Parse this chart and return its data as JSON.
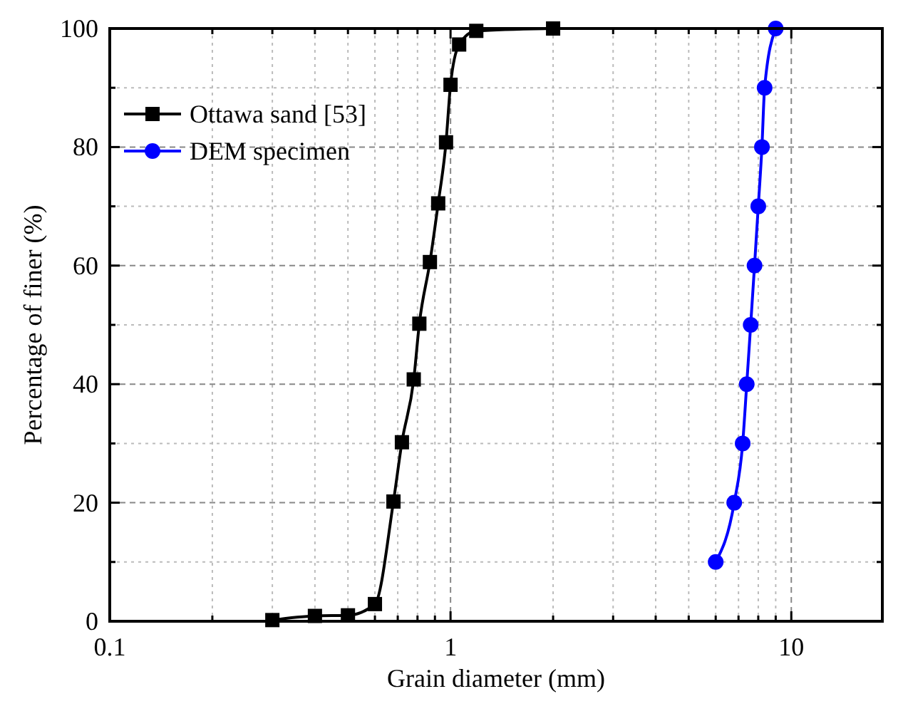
{
  "chart_data": {
    "type": "line",
    "xlabel": "Grain diameter (mm)",
    "ylabel": "Percentage of finer (%)",
    "log": "x",
    "grid": true,
    "legend": "top left",
    "line_style": "solid",
    "xlim": [
      0.1,
      18.5
    ],
    "xticks": [
      0.1,
      {
        "value": 0.2,
        "label": null
      },
      {
        "value": 0.3,
        "label": null
      },
      {
        "value": 0.4,
        "label": null
      },
      {
        "value": 0.5,
        "label": null
      },
      {
        "value": 0.6,
        "label": null
      },
      {
        "value": 0.7,
        "label": null
      },
      {
        "value": 0.8,
        "label": null
      },
      {
        "value": 0.9,
        "label": null
      },
      1,
      {
        "value": 2,
        "label": null
      },
      {
        "value": 3,
        "label": null
      },
      {
        "value": 4,
        "label": null
      },
      {
        "value": 5,
        "label": null
      },
      {
        "value": 6,
        "label": null
      },
      {
        "value": 7,
        "label": null
      },
      {
        "value": 8,
        "label": null
      },
      {
        "value": 9,
        "label": null
      },
      10
    ],
    "ylim": [
      0,
      100
    ],
    "yticks": [
      0,
      {
        "value": 10,
        "label": null
      },
      20,
      {
        "value": 30,
        "label": null
      },
      40,
      {
        "value": 50,
        "label": null
      },
      60,
      {
        "value": 70,
        "label": null
      },
      80,
      {
        "value": 90,
        "label": null
      },
      100
    ],
    "series": [
      {
        "name": "Ottawa sand [53]",
        "color": "#000000",
        "marker": "square",
        "x": [
          0.3,
          0.4,
          0.5,
          0.6,
          0.68,
          0.72,
          0.78,
          0.81,
          0.87,
          0.92,
          0.97,
          1.0,
          1.06,
          1.19,
          2.0
        ],
        "values": [
          0.2,
          0.9,
          1.0,
          2.9,
          20.2,
          30.2,
          40.8,
          50.2,
          60.6,
          70.5,
          80.8,
          90.5,
          97.3,
          99.6,
          100
        ]
      },
      {
        "name": "DEM specimen",
        "color": "#0000ff",
        "marker": "circle",
        "x": [
          6.0,
          6.8,
          7.2,
          7.4,
          7.6,
          7.8,
          8.0,
          8.2,
          8.35,
          9.0
        ],
        "values": [
          10,
          20,
          30,
          40,
          50,
          60,
          70,
          80,
          90,
          100
        ]
      }
    ]
  }
}
